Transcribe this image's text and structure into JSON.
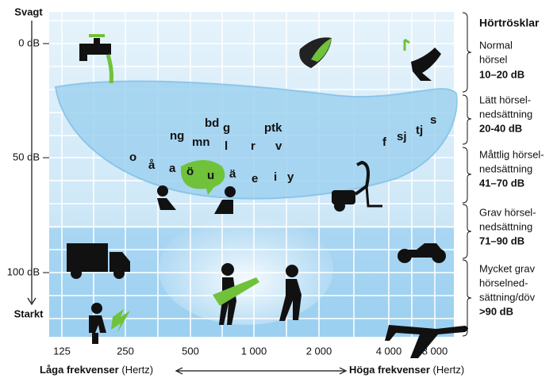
{
  "axis": {
    "top": "Svagt",
    "bottom": "Starkt",
    "y_ticks": [
      "0 dB",
      "50 dB",
      "100 dB"
    ],
    "x_ticks": [
      "125",
      "250",
      "500",
      "1 000",
      "2 000",
      "4 000",
      "8 000"
    ],
    "low": {
      "label": "Låga frekvenser",
      "unit": "(Hertz)"
    },
    "high": {
      "label": "Höga frekvenser",
      "unit": "(Hertz)"
    }
  },
  "phonemes": [
    "bd",
    "g",
    "ptk",
    "s",
    "tj",
    "sj",
    "f",
    "ng",
    "mn",
    "l",
    "r",
    "v",
    "o",
    "å",
    "a",
    "ö",
    "u",
    "ä",
    "e",
    "i",
    "y"
  ],
  "legend": {
    "title": "Hörtrösklar",
    "groups": [
      {
        "lines": [
          "Normal",
          "hörsel"
        ],
        "range": "10–20 dB"
      },
      {
        "lines": [
          "Lätt hörsel-",
          "nedsättning"
        ],
        "range": "20-40 dB"
      },
      {
        "lines": [
          "Måttlig hörsel-",
          "nedsättning"
        ],
        "range": "41–70 dB"
      },
      {
        "lines": [
          "Grav hörsel-",
          "nedsättning"
        ],
        "range": "71–90 dB"
      },
      {
        "lines": [
          "Mycket grav",
          "hörselned-",
          "sättning/döv"
        ],
        "range": ">90 dB"
      }
    ]
  }
}
